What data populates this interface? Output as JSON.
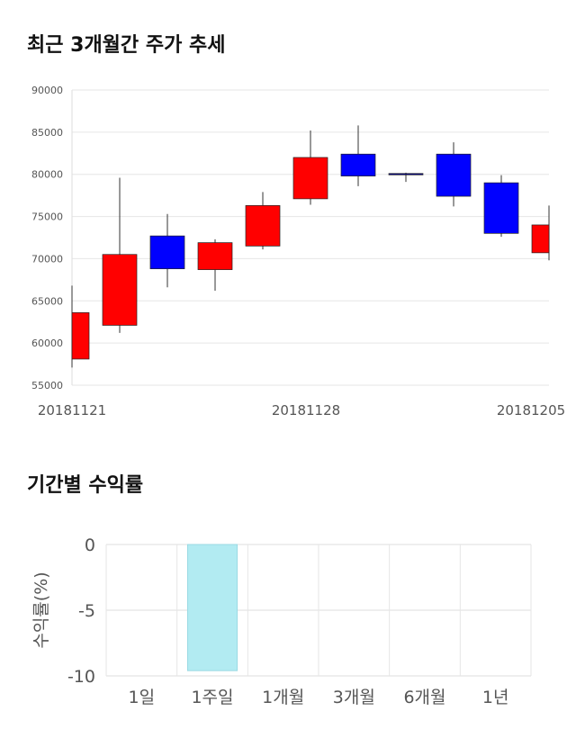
{
  "sections": {
    "candle_title": "최근 3개월간 주가 추세",
    "returns_title": "기간별 수익률"
  },
  "chart_data": [
    {
      "type": "candlestick",
      "title": "최근 3개월간 주가 추세",
      "ylim": [
        55000,
        90000
      ],
      "yticks": [
        55000,
        60000,
        65000,
        70000,
        75000,
        80000,
        85000,
        90000
      ],
      "ytick_labels": [
        "55000",
        "60000",
        "65000",
        "70000",
        "75000",
        "80000",
        "85000",
        "90000"
      ],
      "xtick_labels": [
        "20181121",
        "20181128",
        "20181205"
      ],
      "grid": true,
      "candles": [
        {
          "open": 58100,
          "high": 66800,
          "low": 57100,
          "close": 63600,
          "color": "#ff0000"
        },
        {
          "open": 62100,
          "high": 79600,
          "low": 61200,
          "close": 70500,
          "color": "#ff0000"
        },
        {
          "open": 72700,
          "high": 75300,
          "low": 66600,
          "close": 68800,
          "color": "#0000ff"
        },
        {
          "open": 68700,
          "high": 72300,
          "low": 66200,
          "close": 71900,
          "color": "#ff0000"
        },
        {
          "open": 71500,
          "high": 77900,
          "low": 71100,
          "close": 76300,
          "color": "#ff0000"
        },
        {
          "open": 77100,
          "high": 85200,
          "low": 76400,
          "close": 82000,
          "color": "#ff0000"
        },
        {
          "open": 82400,
          "high": 85800,
          "low": 78600,
          "close": 79800,
          "color": "#0000ff"
        },
        {
          "open": 80100,
          "high": 80200,
          "low": 79100,
          "close": 80100,
          "color": "#00008b"
        },
        {
          "open": 82400,
          "high": 83800,
          "low": 76200,
          "close": 77400,
          "color": "#0000ff"
        },
        {
          "open": 79000,
          "high": 79900,
          "low": 72600,
          "close": 73000,
          "color": "#0000ff"
        },
        {
          "open": 70700,
          "high": 76300,
          "low": 69800,
          "close": 74000,
          "color": "#ff0000"
        }
      ]
    },
    {
      "type": "bar",
      "title": "기간별 수익률",
      "ylabel": "수익률(%)",
      "ylim": [
        -10,
        0
      ],
      "yticks": [
        0,
        -5,
        -10
      ],
      "ytick_labels": [
        "0",
        "-5",
        "-10"
      ],
      "categories": [
        "1일",
        "1주일",
        "1개월",
        "3개월",
        "6개월",
        "1년"
      ],
      "values": [
        null,
        -9.6,
        null,
        null,
        null,
        null
      ],
      "bar_color": "#b2ebf2",
      "bar_border": "#9ad9e3",
      "grid": true
    }
  ]
}
